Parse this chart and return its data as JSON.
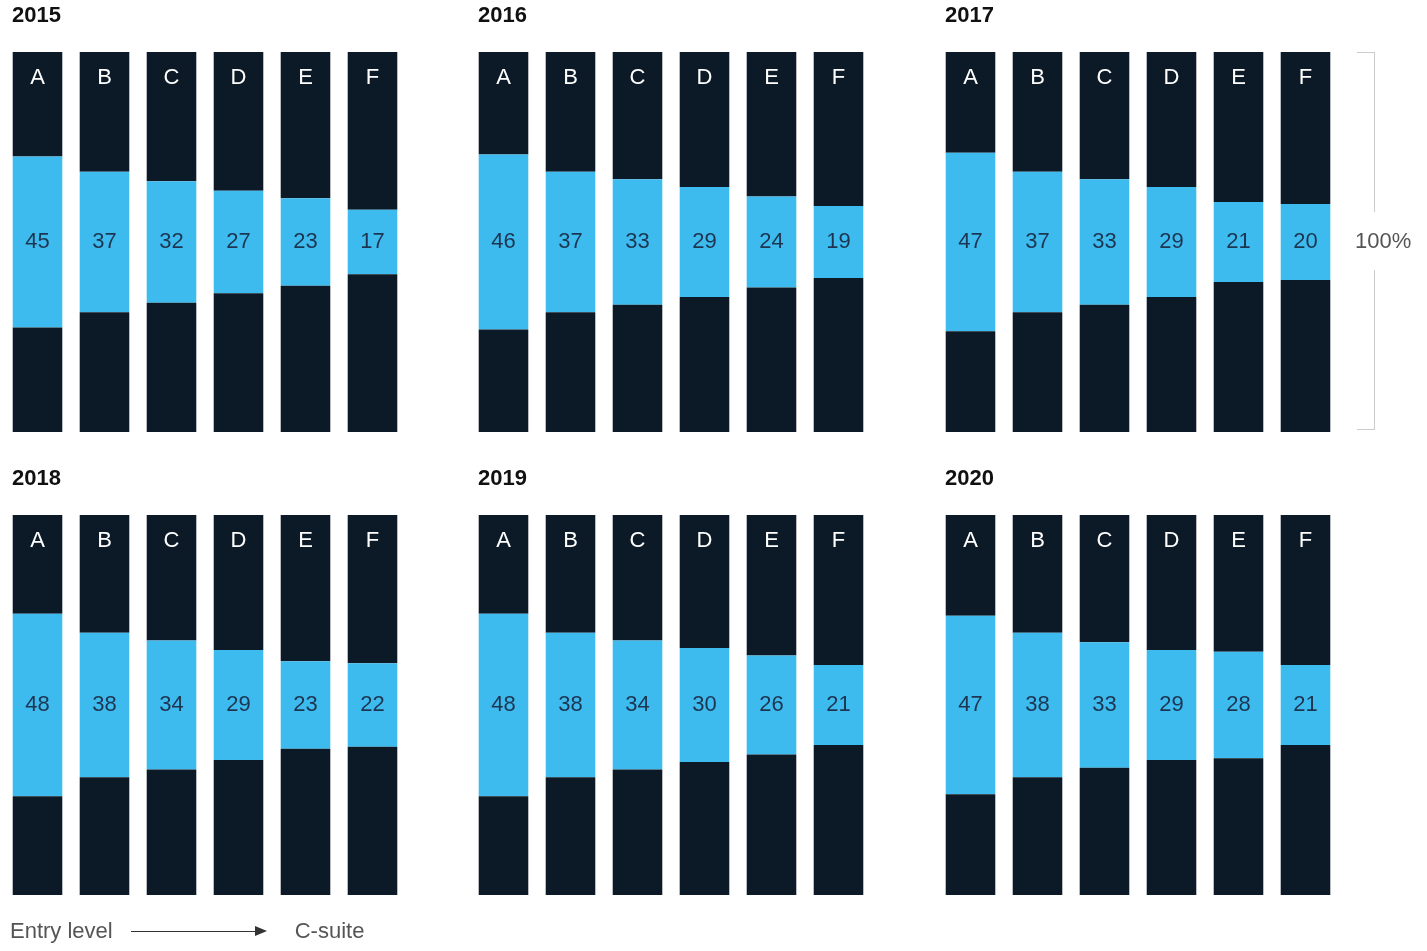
{
  "chart_data": [
    {
      "type": "bar",
      "title": "2015",
      "categories": [
        "A",
        "B",
        "C",
        "D",
        "E",
        "F"
      ],
      "stacked": true,
      "ylim": [
        0,
        100
      ],
      "tick_labels": "x",
      "grid": false,
      "legend": false,
      "series": [
        {
          "color": "#0b1a26",
          "values": [
            27.5,
            31.5,
            34,
            36.5,
            38.5,
            41.5
          ]
        },
        {
          "color": "#3dbbef",
          "values": [
            45,
            37,
            32,
            27,
            23,
            17
          ],
          "data_labels": true
        },
        {
          "color": "#0b1a26",
          "values": [
            27.5,
            31.5,
            34,
            36.5,
            38.5,
            41.5
          ]
        }
      ]
    },
    {
      "type": "bar",
      "title": "2016",
      "categories": [
        "A",
        "B",
        "C",
        "D",
        "E",
        "F"
      ],
      "stacked": true,
      "ylim": [
        0,
        100
      ],
      "tick_labels": "x",
      "grid": false,
      "legend": false,
      "series": [
        {
          "color": "#0b1a26",
          "values": [
            27,
            31.5,
            33.5,
            35.5,
            38,
            40.5
          ]
        },
        {
          "color": "#3dbbef",
          "values": [
            46,
            37,
            33,
            29,
            24,
            19
          ],
          "data_labels": true
        },
        {
          "color": "#0b1a26",
          "values": [
            27,
            31.5,
            33.5,
            35.5,
            38,
            40.5
          ]
        }
      ]
    },
    {
      "type": "bar",
      "title": "2017",
      "categories": [
        "A",
        "B",
        "C",
        "D",
        "E",
        "F"
      ],
      "stacked": true,
      "ylim": [
        0,
        100
      ],
      "tick_labels": "x",
      "grid": false,
      "legend": false,
      "annotations": [
        "100%"
      ],
      "series": [
        {
          "color": "#0b1a26",
          "values": [
            26.5,
            31.5,
            33.5,
            35.5,
            39.5,
            40
          ]
        },
        {
          "color": "#3dbbef",
          "values": [
            47,
            37,
            33,
            29,
            21,
            20
          ],
          "data_labels": true
        },
        {
          "color": "#0b1a26",
          "values": [
            26.5,
            31.5,
            33.5,
            35.5,
            39.5,
            40
          ]
        }
      ]
    },
    {
      "type": "bar",
      "title": "2018",
      "categories": [
        "A",
        "B",
        "C",
        "D",
        "E",
        "F"
      ],
      "stacked": true,
      "ylim": [
        0,
        100
      ],
      "tick_labels": "x",
      "grid": false,
      "legend": false,
      "annotations": [
        "Entry level",
        "C-suite"
      ],
      "series": [
        {
          "color": "#0b1a26",
          "values": [
            26,
            31,
            33,
            35.5,
            38.5,
            39
          ]
        },
        {
          "color": "#3dbbef",
          "values": [
            48,
            38,
            34,
            29,
            23,
            22
          ],
          "data_labels": true
        },
        {
          "color": "#0b1a26",
          "values": [
            26,
            31,
            33,
            35.5,
            38.5,
            39
          ]
        }
      ]
    },
    {
      "type": "bar",
      "title": "2019",
      "categories": [
        "A",
        "B",
        "C",
        "D",
        "E",
        "F"
      ],
      "stacked": true,
      "ylim": [
        0,
        100
      ],
      "tick_labels": "x",
      "grid": false,
      "legend": false,
      "series": [
        {
          "color": "#0b1a26",
          "values": [
            26,
            31,
            33,
            35,
            37,
            39.5
          ]
        },
        {
          "color": "#3dbbef",
          "values": [
            48,
            38,
            34,
            30,
            26,
            21
          ],
          "data_labels": true
        },
        {
          "color": "#0b1a26",
          "values": [
            26,
            31,
            33,
            35,
            37,
            39.5
          ]
        }
      ]
    },
    {
      "type": "bar",
      "title": "2020",
      "categories": [
        "A",
        "B",
        "C",
        "D",
        "E",
        "F"
      ],
      "stacked": true,
      "ylim": [
        0,
        100
      ],
      "tick_labels": "x",
      "grid": false,
      "legend": false,
      "series": [
        {
          "color": "#0b1a26",
          "values": [
            26.5,
            31,
            33.5,
            35.5,
            36,
            39.5
          ]
        },
        {
          "color": "#3dbbef",
          "values": [
            47,
            38,
            33,
            29,
            28,
            21
          ],
          "data_labels": true
        },
        {
          "color": "#0b1a26",
          "values": [
            26.5,
            31,
            33.5,
            35.5,
            36,
            39.5
          ]
        }
      ]
    }
  ]
}
